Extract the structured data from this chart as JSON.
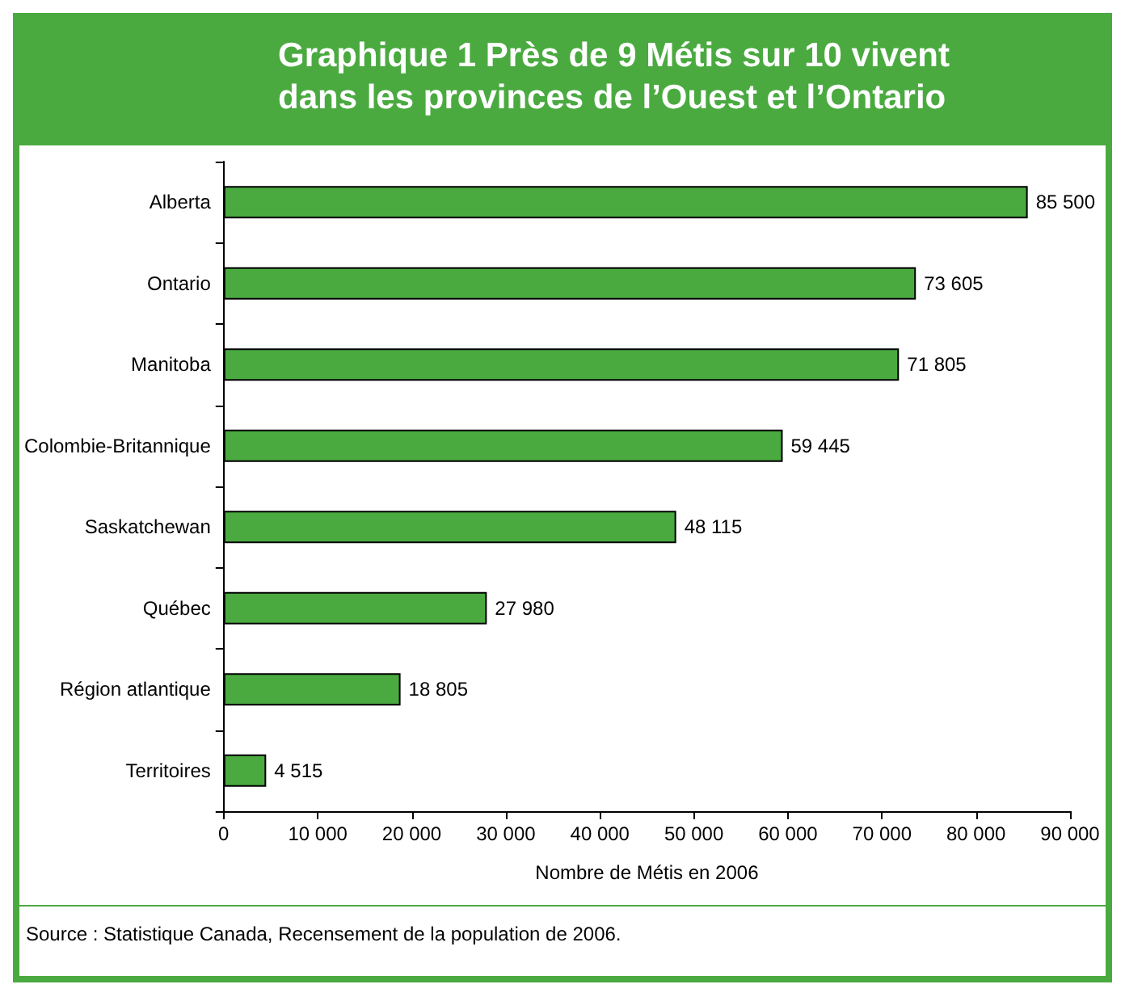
{
  "chart_data": {
    "type": "bar",
    "orientation": "horizontal",
    "title": "Graphique 1  Près de 9 Métis sur 10 vivent dans les provinces de l’Ouest et l’Ontario",
    "xlabel": "Nombre de Métis en 2006",
    "categories": [
      "Alberta",
      "Ontario",
      "Manitoba",
      "Colombie-Britannique",
      "Saskatchewan",
      "Québec",
      "Région atlantique",
      "Territoires"
    ],
    "values": [
      85500,
      73605,
      71805,
      59445,
      48115,
      27980,
      18805,
      4515
    ],
    "value_labels": [
      "85 500",
      "73 605",
      "71 805",
      "59 445",
      "48 115",
      "27 980",
      "18 805",
      "4 515"
    ],
    "color": "#4aaa40",
    "xlim": [
      0,
      90000
    ],
    "xticks": [
      0,
      {
        "value": 10000,
        "label": "10 000"
      },
      {
        "value": 20000,
        "label": "20 000"
      },
      {
        "value": 30000,
        "label": "30 000"
      },
      {
        "value": 40000,
        "label": "40 000"
      },
      {
        "value": 50000,
        "label": "50 000"
      },
      {
        "value": 60000,
        "label": "60 000"
      },
      {
        "value": 70000,
        "label": "70 000"
      },
      {
        "value": 80000,
        "label": "80 000"
      },
      {
        "value": 90000,
        "label": "90 000"
      }
    ],
    "grid": false,
    "annotations": [
      "Source : Statistique Canada, Recensement de la population de 2006."
    ]
  }
}
